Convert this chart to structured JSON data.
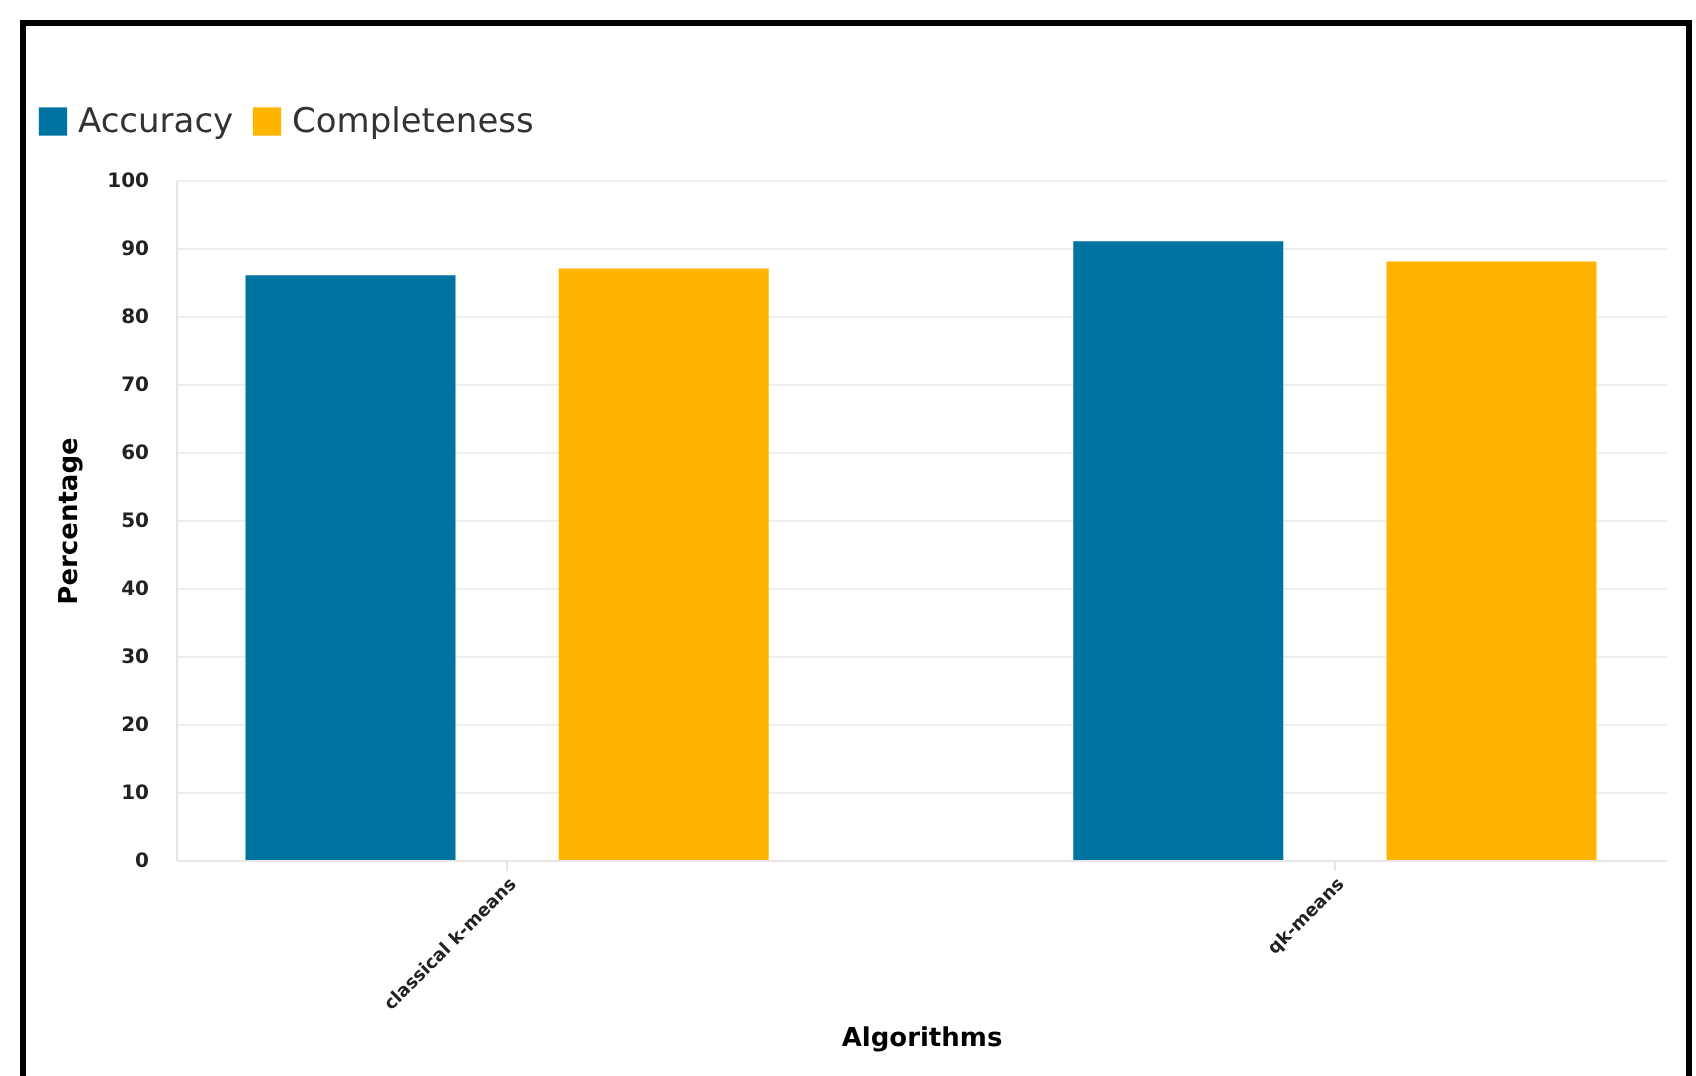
{
  "chart_data": {
    "type": "bar",
    "xlabel": "Algorithms",
    "ylabel": "Percentage",
    "categories": [
      "classical k-means",
      "qk-means"
    ],
    "series": [
      {
        "name": "Accuracy",
        "color": "#0073a1",
        "values": [
          86,
          91
        ]
      },
      {
        "name": "Completeness",
        "color": "#ffb400",
        "values": [
          87,
          88
        ]
      }
    ],
    "ylim": [
      0,
      100
    ],
    "yticks": [
      0,
      10,
      20,
      30,
      40,
      50,
      60,
      70,
      80,
      90,
      100
    ],
    "grid": "y",
    "legend": "top left"
  }
}
